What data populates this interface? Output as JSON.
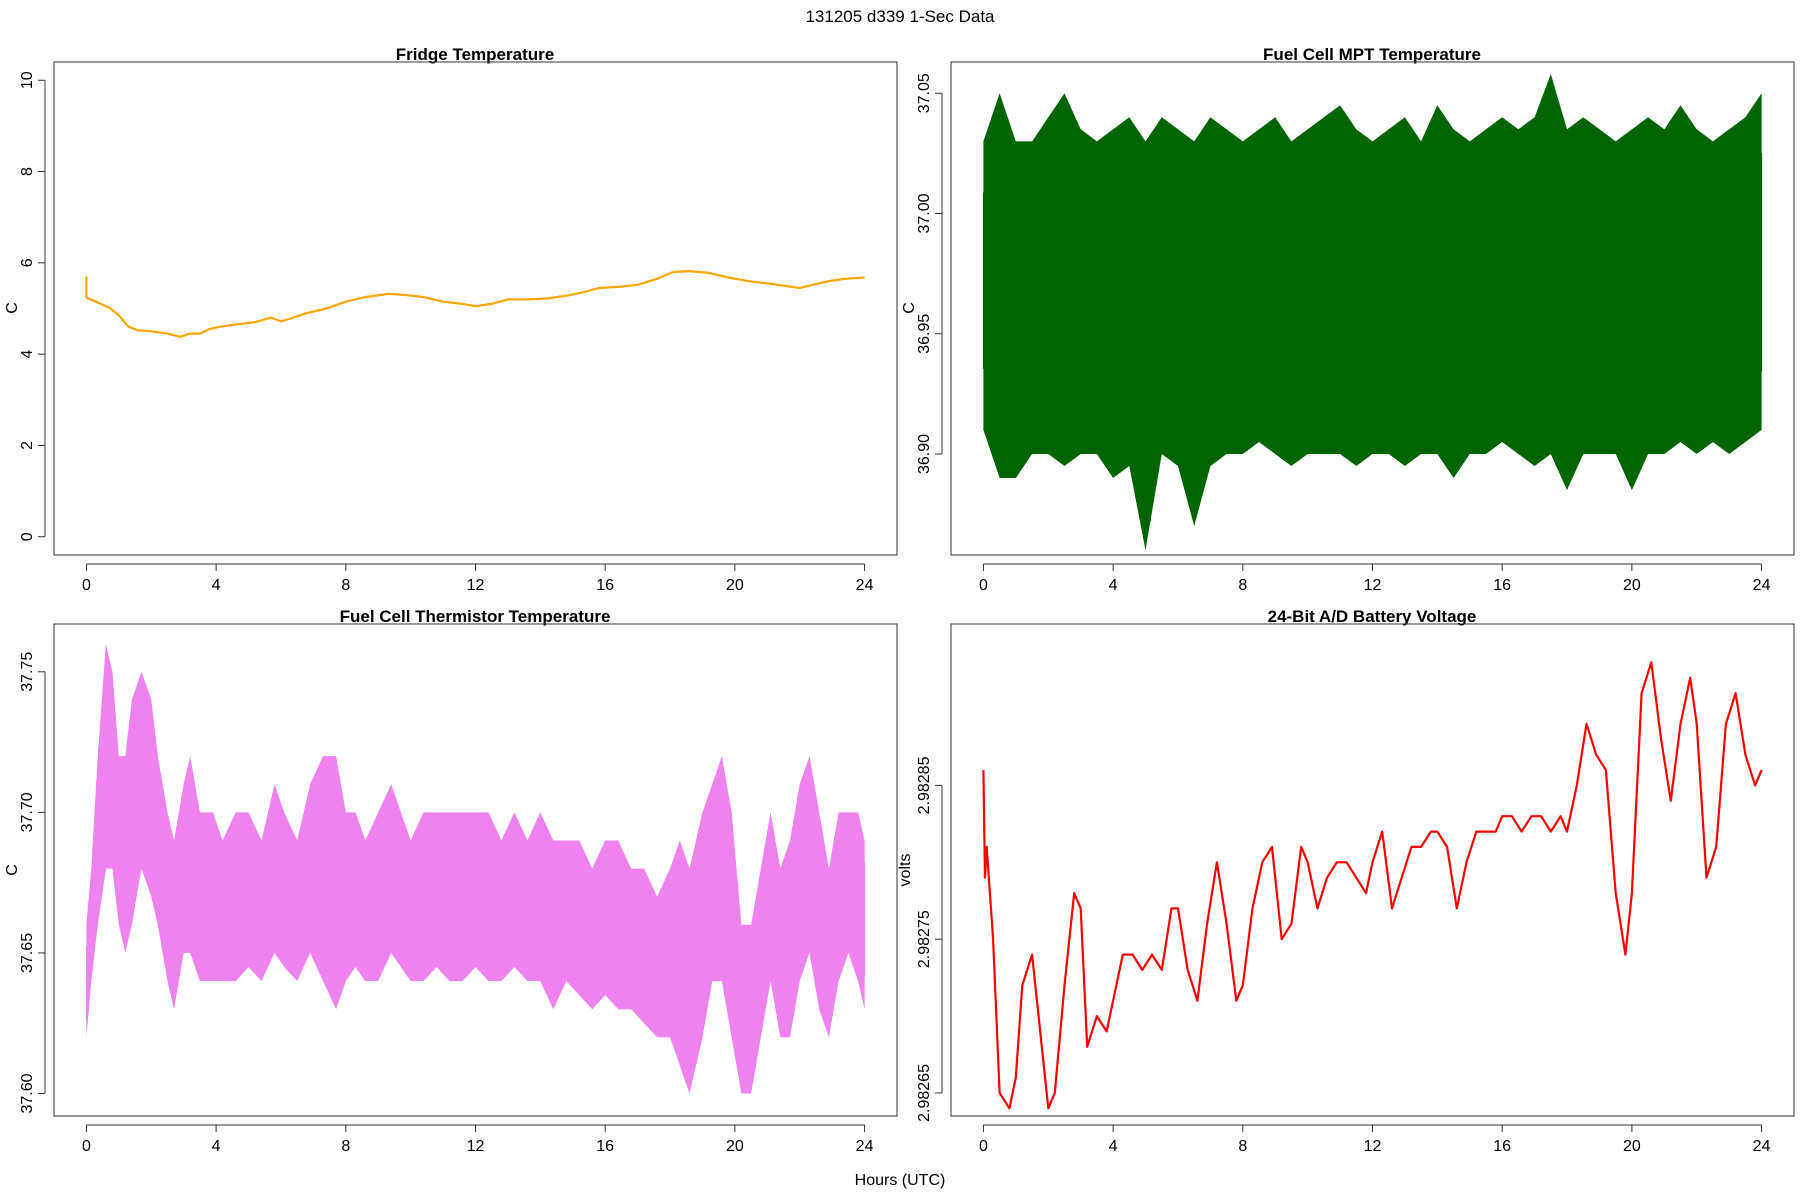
{
  "figure": {
    "title": "131205   d339   1-Sec Data",
    "xlabel": "Hours (UTC)"
  },
  "chart_data": [
    {
      "type": "line",
      "title": "Fridge Temperature",
      "xlabel": "",
      "ylabel": "C",
      "xlim": [
        -1,
        25
      ],
      "ylim": [
        -0.4,
        10.4
      ],
      "xticks": [
        0,
        4,
        8,
        12,
        16,
        20,
        24
      ],
      "xtick_labels": [
        "0",
        "4",
        "8",
        "12",
        "16",
        "20",
        "24"
      ],
      "yticks": [
        0,
        2,
        4,
        6,
        8,
        10
      ],
      "ytick_labels": [
        "0",
        "2",
        "4",
        "6",
        "8",
        "10"
      ],
      "color": "#FFA500",
      "series": [
        {
          "x": [
            0,
            0,
            0.05,
            0.3,
            0.7,
            1.0,
            1.3,
            1.6,
            2.0,
            2.5,
            2.9,
            3.2,
            3.5,
            3.8,
            4.1,
            4.6,
            5.2,
            5.7,
            6.0,
            6.3,
            6.8,
            7.4,
            8.0,
            8.6,
            9.3,
            9.8,
            10.4,
            11.0,
            11.6,
            12.0,
            12.5,
            13.0,
            13.6,
            14.2,
            14.8,
            15.3,
            15.8,
            16.5,
            17.0,
            17.6,
            18.1,
            18.6,
            19.2,
            19.8,
            20.4,
            21.0,
            21.5,
            22.0,
            22.4,
            22.9,
            23.4,
            24.0
          ],
          "y": [
            5.7,
            5.25,
            5.22,
            5.15,
            5.02,
            4.85,
            4.6,
            4.52,
            4.5,
            4.45,
            4.38,
            4.45,
            4.45,
            4.55,
            4.6,
            4.65,
            4.7,
            4.8,
            4.72,
            4.78,
            4.9,
            5.0,
            5.15,
            5.25,
            5.32,
            5.3,
            5.25,
            5.15,
            5.1,
            5.05,
            5.1,
            5.2,
            5.2,
            5.22,
            5.28,
            5.35,
            5.45,
            5.48,
            5.52,
            5.65,
            5.8,
            5.82,
            5.78,
            5.68,
            5.6,
            5.55,
            5.5,
            5.45,
            5.52,
            5.6,
            5.65,
            5.68
          ]
        }
      ]
    },
    {
      "type": "line",
      "title": "Fuel Cell MPT Temperature",
      "xlabel": "",
      "ylabel": "C",
      "xlim": [
        -1,
        25
      ],
      "ylim": [
        36.858,
        37.063
      ],
      "xticks": [
        0,
        4,
        8,
        12,
        16,
        20,
        24
      ],
      "xtick_labels": [
        "0",
        "4",
        "8",
        "12",
        "16",
        "20",
        "24"
      ],
      "yticks": [
        36.9,
        36.95,
        37.0,
        37.05
      ],
      "ytick_labels": [
        "36.90",
        "36.95",
        "37.00",
        "37.05"
      ],
      "color": "#006400",
      "series": [
        {
          "x": [
            0,
            0.5,
            1,
            1.5,
            2,
            2.5,
            3,
            3.5,
            4,
            4.5,
            5,
            5.5,
            6,
            6.5,
            7,
            7.5,
            8,
            8.5,
            9,
            9.5,
            10,
            10.5,
            11,
            11.5,
            12,
            12.5,
            13,
            13.5,
            14,
            14.5,
            15,
            15.5,
            16,
            16.5,
            17,
            17.5,
            18,
            18.5,
            19,
            19.5,
            20,
            20.5,
            21,
            21.5,
            22,
            22.5,
            23,
            23.5,
            24
          ],
          "y_upper": [
            37.03,
            37.05,
            37.03,
            37.03,
            37.04,
            37.05,
            37.035,
            37.03,
            37.035,
            37.04,
            37.03,
            37.04,
            37.035,
            37.03,
            37.04,
            37.035,
            37.03,
            37.035,
            37.04,
            37.03,
            37.035,
            37.04,
            37.045,
            37.035,
            37.03,
            37.035,
            37.04,
            37.03,
            37.045,
            37.035,
            37.03,
            37.035,
            37.04,
            37.035,
            37.04,
            37.058,
            37.035,
            37.04,
            37.035,
            37.03,
            37.035,
            37.04,
            37.035,
            37.045,
            37.035,
            37.03,
            37.035,
            37.04,
            37.05
          ],
          "y_lower": [
            36.91,
            36.89,
            36.89,
            36.9,
            36.9,
            36.895,
            36.9,
            36.9,
            36.89,
            36.895,
            36.86,
            36.9,
            36.895,
            36.87,
            36.895,
            36.9,
            36.9,
            36.905,
            36.9,
            36.895,
            36.9,
            36.9,
            36.9,
            36.895,
            36.9,
            36.9,
            36.895,
            36.9,
            36.9,
            36.89,
            36.9,
            36.9,
            36.905,
            36.9,
            36.895,
            36.9,
            36.885,
            36.9,
            36.9,
            36.9,
            36.885,
            36.9,
            36.9,
            36.905,
            36.9,
            36.905,
            36.9,
            36.905,
            36.91
          ]
        }
      ]
    },
    {
      "type": "line",
      "title": "Fuel Cell Thermistor Temperature",
      "xlabel": "",
      "ylabel": "C",
      "xlim": [
        -1,
        25
      ],
      "ylim": [
        37.592,
        37.767
      ],
      "xticks": [
        0,
        4,
        8,
        12,
        16,
        20,
        24
      ],
      "xtick_labels": [
        "0",
        "4",
        "8",
        "12",
        "16",
        "20",
        "24"
      ],
      "yticks": [
        37.6,
        37.65,
        37.7,
        37.75
      ],
      "ytick_labels": [
        "37.60",
        "37.65",
        "37.70",
        "37.75"
      ],
      "color": "#EE82EE",
      "series": [
        {
          "x": [
            0,
            0.15,
            0.35,
            0.6,
            0.8,
            1.0,
            1.2,
            1.4,
            1.7,
            2.0,
            2.2,
            2.5,
            2.7,
            3.0,
            3.2,
            3.5,
            3.9,
            4.2,
            4.6,
            5.0,
            5.4,
            5.8,
            6.1,
            6.5,
            6.9,
            7.3,
            7.7,
            8.0,
            8.3,
            8.6,
            9.0,
            9.4,
            9.7,
            10.0,
            10.4,
            10.8,
            11.2,
            11.6,
            12.0,
            12.4,
            12.8,
            13.2,
            13.6,
            14.0,
            14.4,
            14.8,
            15.2,
            15.6,
            16.0,
            16.4,
            16.8,
            17.2,
            17.6,
            18.0,
            18.3,
            18.6,
            19.0,
            19.3,
            19.6,
            19.9,
            20.2,
            20.5,
            20.8,
            21.1,
            21.4,
            21.7,
            22.0,
            22.3,
            22.6,
            22.9,
            23.2,
            23.5,
            23.8,
            24.0
          ],
          "y_upper": [
            37.66,
            37.68,
            37.72,
            37.76,
            37.75,
            37.72,
            37.72,
            37.74,
            37.75,
            37.74,
            37.72,
            37.7,
            37.69,
            37.71,
            37.72,
            37.7,
            37.7,
            37.69,
            37.7,
            37.7,
            37.69,
            37.71,
            37.7,
            37.69,
            37.71,
            37.72,
            37.72,
            37.7,
            37.7,
            37.69,
            37.7,
            37.71,
            37.7,
            37.69,
            37.7,
            37.7,
            37.7,
            37.7,
            37.7,
            37.7,
            37.69,
            37.7,
            37.69,
            37.7,
            37.69,
            37.69,
            37.69,
            37.68,
            37.69,
            37.69,
            37.68,
            37.68,
            37.67,
            37.68,
            37.69,
            37.68,
            37.7,
            37.71,
            37.72,
            37.7,
            37.66,
            37.66,
            37.68,
            37.7,
            37.68,
            37.69,
            37.71,
            37.72,
            37.7,
            37.68,
            37.7,
            37.7,
            37.7,
            37.69
          ],
          "y_lower": [
            37.62,
            37.64,
            37.66,
            37.68,
            37.68,
            37.66,
            37.65,
            37.66,
            37.68,
            37.67,
            37.66,
            37.64,
            37.63,
            37.65,
            37.65,
            37.64,
            37.64,
            37.64,
            37.64,
            37.645,
            37.64,
            37.65,
            37.645,
            37.64,
            37.65,
            37.64,
            37.63,
            37.64,
            37.645,
            37.64,
            37.64,
            37.65,
            37.645,
            37.64,
            37.64,
            37.645,
            37.64,
            37.64,
            37.645,
            37.64,
            37.64,
            37.645,
            37.64,
            37.64,
            37.63,
            37.64,
            37.635,
            37.63,
            37.635,
            37.63,
            37.63,
            37.625,
            37.62,
            37.62,
            37.61,
            37.6,
            37.62,
            37.64,
            37.64,
            37.62,
            37.6,
            37.6,
            37.62,
            37.64,
            37.62,
            37.62,
            37.64,
            37.65,
            37.63,
            37.62,
            37.64,
            37.65,
            37.64,
            37.63
          ]
        }
      ]
    },
    {
      "type": "line",
      "title": "24-Bit A/D Battery Voltage",
      "xlabel": "",
      "ylabel": "volts",
      "xlim": [
        -1,
        25
      ],
      "ylim": [
        2.982635,
        2.982955
      ],
      "xticks": [
        0,
        4,
        8,
        12,
        16,
        20,
        24
      ],
      "xtick_labels": [
        "0",
        "4",
        "8",
        "12",
        "16",
        "20",
        "24"
      ],
      "yticks": [
        2.98265,
        2.98275,
        2.98285
      ],
      "ytick_labels": [
        "2.98265",
        "2.98275",
        "2.98285"
      ],
      "color": "#FF0000",
      "series": [
        {
          "x": [
            0,
            0.05,
            0.1,
            0.3,
            0.5,
            0.8,
            1.0,
            1.2,
            1.5,
            1.8,
            2.0,
            2.2,
            2.5,
            2.8,
            3.0,
            3.2,
            3.5,
            3.8,
            4.0,
            4.3,
            4.6,
            4.9,
            5.2,
            5.5,
            5.8,
            6.0,
            6.3,
            6.6,
            6.9,
            7.2,
            7.5,
            7.8,
            8.0,
            8.3,
            8.6,
            8.9,
            9.2,
            9.5,
            9.8,
            10.0,
            10.3,
            10.6,
            10.9,
            11.2,
            11.5,
            11.8,
            12.0,
            12.3,
            12.6,
            12.9,
            13.2,
            13.5,
            13.8,
            14.0,
            14.3,
            14.6,
            14.9,
            15.2,
            15.5,
            15.8,
            16.0,
            16.3,
            16.6,
            16.9,
            17.2,
            17.5,
            17.8,
            18.0,
            18.3,
            18.6,
            18.9,
            19.2,
            19.5,
            19.8,
            20.0,
            20.3,
            20.6,
            20.9,
            21.2,
            21.5,
            21.8,
            22.0,
            22.3,
            22.6,
            22.9,
            23.2,
            23.5,
            23.8,
            24.0
          ],
          "y": [
            2.98286,
            2.98279,
            2.98281,
            2.98275,
            2.98265,
            2.98264,
            2.98266,
            2.98272,
            2.98274,
            2.98268,
            2.98264,
            2.98265,
            2.98272,
            2.98278,
            2.98277,
            2.98268,
            2.9827,
            2.98269,
            2.98271,
            2.98274,
            2.98274,
            2.98273,
            2.98274,
            2.98273,
            2.98277,
            2.98277,
            2.98273,
            2.98271,
            2.98276,
            2.9828,
            2.98276,
            2.98271,
            2.98272,
            2.98277,
            2.9828,
            2.98281,
            2.98275,
            2.98276,
            2.98281,
            2.9828,
            2.98277,
            2.98279,
            2.9828,
            2.9828,
            2.98279,
            2.98278,
            2.9828,
            2.98282,
            2.98277,
            2.98279,
            2.98281,
            2.98281,
            2.98282,
            2.98282,
            2.98281,
            2.98277,
            2.9828,
            2.98282,
            2.98282,
            2.98282,
            2.98283,
            2.98283,
            2.98282,
            2.98283,
            2.98283,
            2.98282,
            2.98283,
            2.98282,
            2.98285,
            2.98289,
            2.98287,
            2.98286,
            2.98278,
            2.98274,
            2.98278,
            2.98291,
            2.98293,
            2.98288,
            2.98284,
            2.98289,
            2.98292,
            2.98289,
            2.98279,
            2.98281,
            2.98289,
            2.98291,
            2.98287,
            2.98285,
            2.98286
          ]
        }
      ]
    }
  ]
}
